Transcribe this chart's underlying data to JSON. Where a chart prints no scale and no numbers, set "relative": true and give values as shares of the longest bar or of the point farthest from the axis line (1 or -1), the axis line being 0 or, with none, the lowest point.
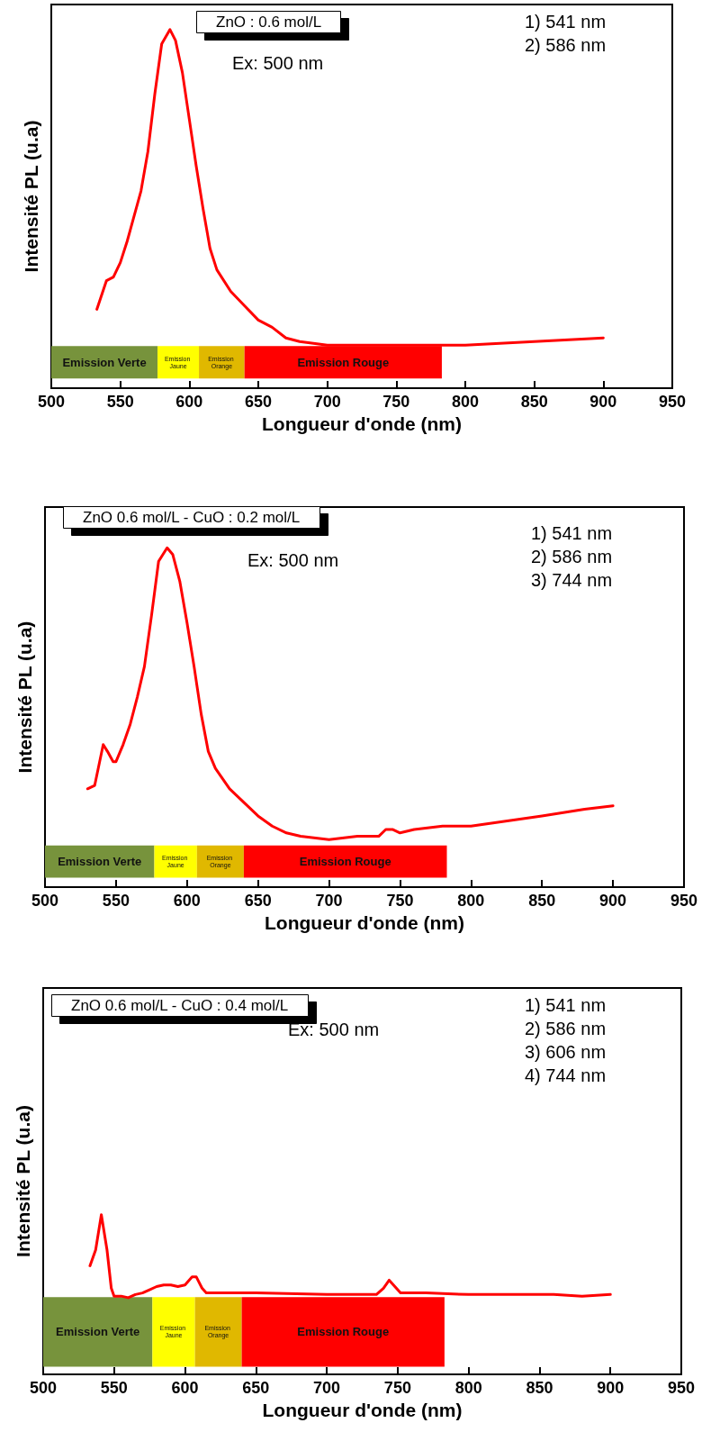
{
  "chart_data": [
    {
      "type": "line",
      "relative": true,
      "title": "ZnO : 0.6 mol/L",
      "xlabel": "Longueur d'onde (nm)",
      "ylabel": "Intensité PL (u.a)",
      "xlim": [
        500,
        950
      ],
      "xticks": [
        500,
        550,
        600,
        650,
        700,
        750,
        800,
        850,
        900,
        950
      ],
      "tick_labels": "x",
      "marker": "none",
      "annotations": [
        "Ex: 500 nm",
        "1) 541 nm",
        "2) 586 nm"
      ],
      "bands": [
        {
          "axis": "x",
          "from": 500,
          "to": 577,
          "label": "Emission Verte",
          "color": "#77933c"
        },
        {
          "axis": "x",
          "from": 577,
          "to": 607,
          "label": "Emission Jaune",
          "color": "#ffff00"
        },
        {
          "axis": "x",
          "from": 607,
          "to": 640,
          "label": "Emission Orange",
          "color": "#e0b800"
        },
        {
          "axis": "x",
          "from": 640,
          "to": 783,
          "label": "Emission Rouge",
          "color": "#ff0000"
        }
      ],
      "series": [
        {
          "color": "#ff0000",
          "x": [
            533,
            540,
            545,
            550,
            555,
            560,
            565,
            570,
            575,
            580,
            586,
            590,
            595,
            600,
            605,
            610,
            615,
            620,
            630,
            640,
            650,
            660,
            670,
            680,
            700,
            720,
            750,
            800,
            850,
            900
          ],
          "values": [
            0.22,
            0.3,
            0.31,
            0.35,
            0.41,
            0.48,
            0.55,
            0.66,
            0.82,
            0.96,
            1.0,
            0.97,
            0.88,
            0.75,
            0.62,
            0.5,
            0.39,
            0.33,
            0.27,
            0.23,
            0.19,
            0.17,
            0.14,
            0.13,
            0.12,
            0.12,
            0.12,
            0.12,
            0.13,
            0.14
          ]
        }
      ]
    },
    {
      "type": "line",
      "relative": true,
      "title": "ZnO 0.6 mol/L - CuO : 0.2 mol/L",
      "xlabel": "Longueur d'onde (nm)",
      "ylabel": "Intensité PL (u.a)",
      "xlim": [
        500,
        950
      ],
      "xticks": [
        500,
        550,
        600,
        650,
        700,
        750,
        800,
        850,
        900,
        950
      ],
      "tick_labels": "x",
      "marker": "none",
      "annotations": [
        "Ex: 500 nm",
        "1) 541 nm",
        "2) 586 nm",
        "3) 744 nm"
      ],
      "bands": [
        {
          "axis": "x",
          "from": 500,
          "to": 577,
          "label": "Emission Verte",
          "color": "#77933c"
        },
        {
          "axis": "x",
          "from": 577,
          "to": 607,
          "label": "Emission Jaune",
          "color": "#ffff00"
        },
        {
          "axis": "x",
          "from": 607,
          "to": 640,
          "label": "Emission Orange",
          "color": "#e0b800"
        },
        {
          "axis": "x",
          "from": 640,
          "to": 783,
          "label": "Emission Rouge",
          "color": "#ff0000"
        }
      ],
      "series": [
        {
          "color": "#ff0000",
          "x": [
            530,
            535,
            541,
            544,
            548,
            550,
            555,
            560,
            565,
            570,
            575,
            580,
            586,
            590,
            595,
            600,
            605,
            610,
            615,
            620,
            630,
            640,
            650,
            660,
            670,
            680,
            700,
            720,
            735,
            740,
            745,
            750,
            760,
            780,
            800,
            850,
            880,
            900
          ],
          "values": [
            0.29,
            0.3,
            0.42,
            0.4,
            0.37,
            0.37,
            0.42,
            0.48,
            0.56,
            0.65,
            0.8,
            0.96,
            1.0,
            0.98,
            0.9,
            0.78,
            0.65,
            0.51,
            0.4,
            0.35,
            0.29,
            0.25,
            0.21,
            0.18,
            0.16,
            0.15,
            0.14,
            0.15,
            0.15,
            0.17,
            0.17,
            0.16,
            0.17,
            0.18,
            0.18,
            0.21,
            0.23,
            0.24
          ]
        }
      ]
    },
    {
      "type": "line",
      "relative": true,
      "title": "ZnO 0.6 mol/L - CuO : 0.4 mol/L",
      "xlabel": "Longueur d'onde (nm)",
      "ylabel": "Intensité PL (u.a)",
      "xlim": [
        500,
        950
      ],
      "xticks": [
        500,
        550,
        600,
        650,
        700,
        750,
        800,
        850,
        900,
        950
      ],
      "tick_labels": "x",
      "marker": "none",
      "annotations": [
        "Ex: 500 nm",
        "1) 541 nm",
        "2) 586 nm",
        "3) 606 nm",
        "4) 744 nm"
      ],
      "bands": [
        {
          "axis": "x",
          "from": 500,
          "to": 577,
          "label": "Emission Verte",
          "color": "#77933c"
        },
        {
          "axis": "x",
          "from": 577,
          "to": 607,
          "label": "Emission Jaune",
          "color": "#ffff00"
        },
        {
          "axis": "x",
          "from": 607,
          "to": 640,
          "label": "Emission Orange",
          "color": "#e0b800"
        },
        {
          "axis": "x",
          "from": 640,
          "to": 783,
          "label": "Emission Rouge",
          "color": "#ff0000"
        }
      ],
      "series": [
        {
          "color": "#ff0000",
          "x": [
            533,
            537,
            541,
            545,
            548,
            550,
            555,
            560,
            565,
            570,
            575,
            580,
            585,
            590,
            595,
            600,
            605,
            608,
            612,
            615,
            620,
            650,
            700,
            735,
            740,
            744,
            748,
            752,
            770,
            800,
            830,
            860,
            880,
            900
          ],
          "values": [
            0.68,
            0.78,
            1.0,
            0.78,
            0.54,
            0.49,
            0.49,
            0.48,
            0.5,
            0.51,
            0.53,
            0.55,
            0.56,
            0.56,
            0.55,
            0.56,
            0.61,
            0.61,
            0.54,
            0.51,
            0.51,
            0.51,
            0.5,
            0.5,
            0.54,
            0.59,
            0.55,
            0.51,
            0.51,
            0.5,
            0.5,
            0.5,
            0.49,
            0.5
          ]
        }
      ]
    }
  ]
}
